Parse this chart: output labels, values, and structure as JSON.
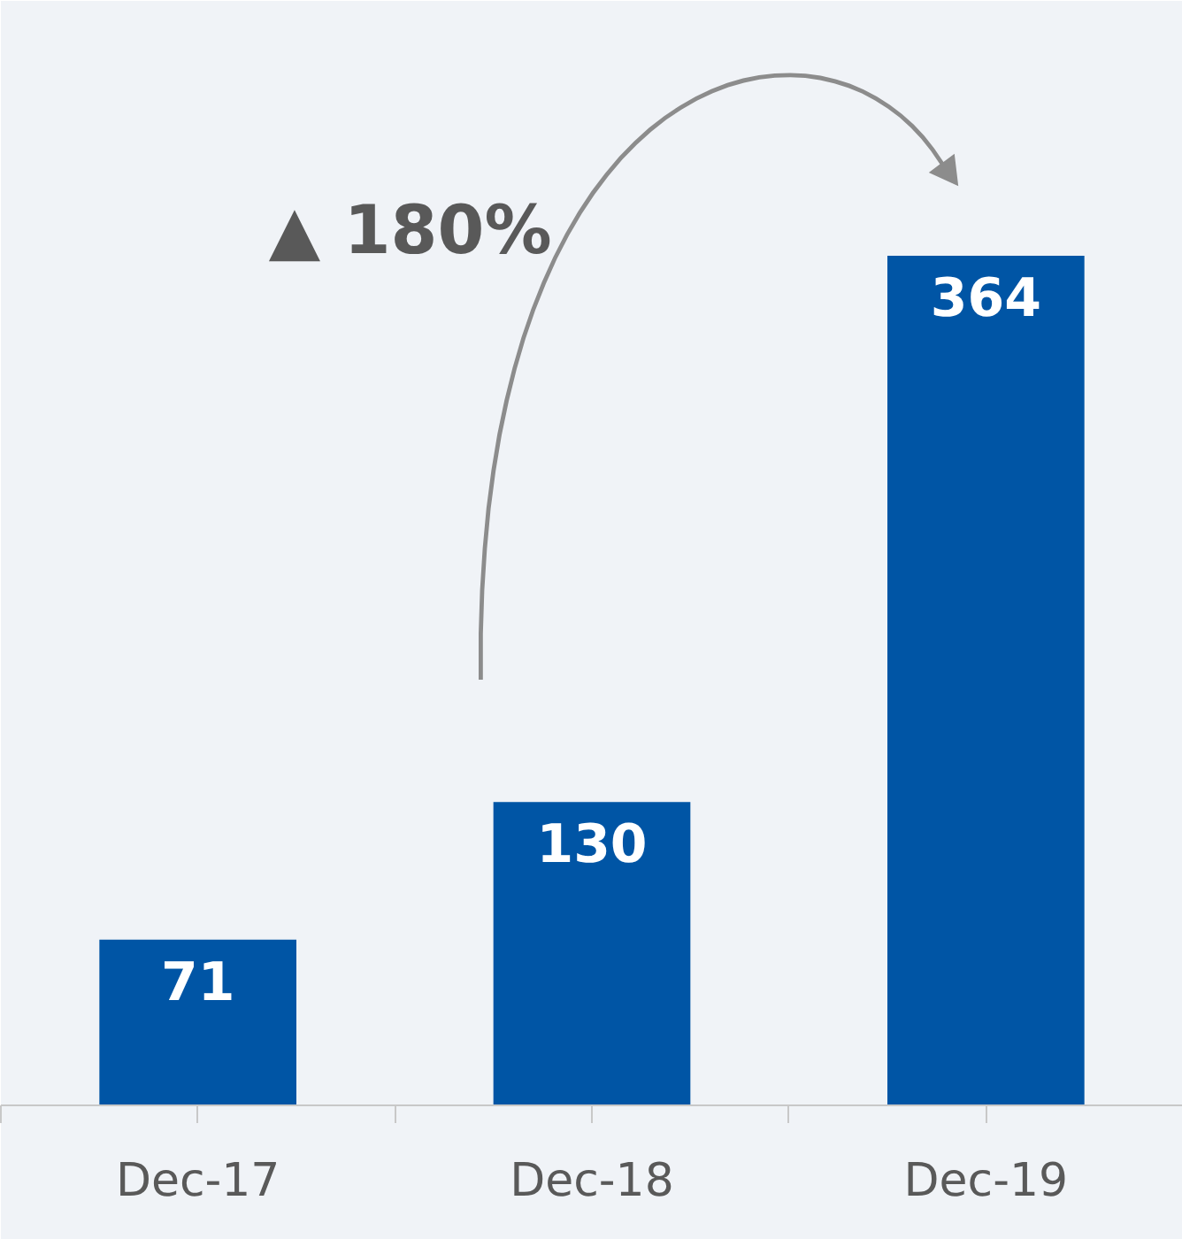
{
  "chart_data": {
    "type": "bar",
    "categories": [
      "Dec-17",
      "Dec-18",
      "Dec-19"
    ],
    "values": [
      71,
      130,
      364
    ],
    "color": "#0055a5",
    "data_labels": true,
    "grid": false,
    "annotations": [
      "▲ 180%"
    ]
  }
}
